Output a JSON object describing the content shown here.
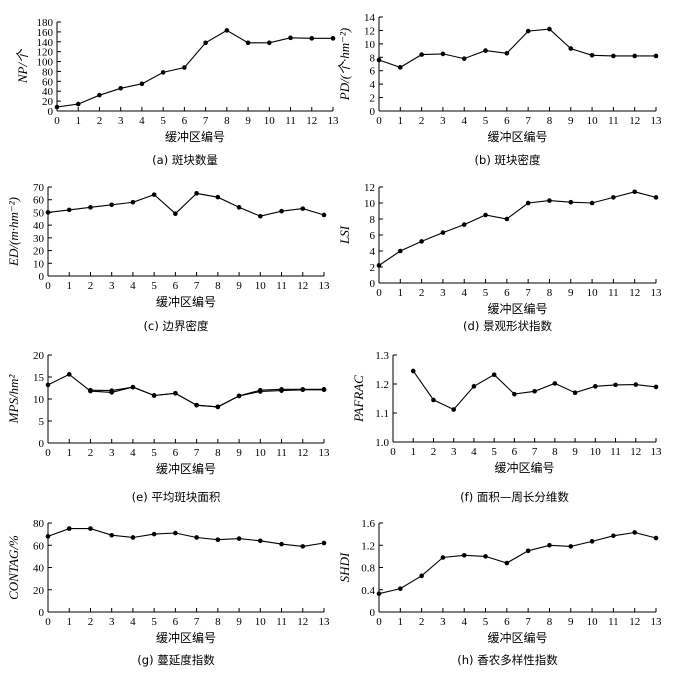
{
  "chart_data": [
    {
      "type": "line",
      "caption": "(a) 斑块数量",
      "ylabel": "NP/个",
      "xlabel": "缓冲区编号",
      "ylim": [
        0,
        180
      ],
      "yticks": [
        "0",
        "20",
        "40",
        "60",
        "80",
        "100",
        "120",
        "140",
        "160",
        "180"
      ],
      "xticks": [
        "0",
        "1",
        "2",
        "3",
        "4",
        "5",
        "6",
        "7",
        "8",
        "9",
        "10",
        "11",
        "12",
        "13"
      ],
      "series": [
        {
          "x": [
            0,
            1,
            2,
            3,
            4,
            5,
            6,
            7,
            8,
            9,
            10,
            11,
            12,
            13
          ],
          "values": [
            8,
            14,
            32,
            46,
            55,
            78,
            88,
            138,
            163,
            138,
            138,
            148,
            147,
            147
          ]
        }
      ]
    },
    {
      "type": "line",
      "caption": "(b) 斑块密度",
      "ylabel": "PD/(个·hm⁻²)",
      "xlabel": "缓冲区编号",
      "ylim": [
        0,
        14
      ],
      "yticks": [
        "0",
        "2",
        "4",
        "6",
        "8",
        "10",
        "12",
        "14"
      ],
      "xticks": [
        "0",
        "1",
        "2",
        "3",
        "4",
        "5",
        "6",
        "7",
        "8",
        "9",
        "10",
        "11",
        "12",
        "13"
      ],
      "series": [
        {
          "x": [
            0,
            1,
            2,
            3,
            4,
            5,
            6,
            7,
            8,
            9,
            10,
            11,
            12,
            13
          ],
          "values": [
            7.6,
            6.5,
            8.4,
            8.5,
            7.8,
            9.0,
            8.6,
            11.9,
            12.2,
            9.3,
            8.3,
            8.2,
            8.2,
            8.2
          ]
        }
      ]
    },
    {
      "type": "line",
      "caption": "(c) 边界密度",
      "ylabel": "ED/(m·hm⁻²)",
      "xlabel": "缓冲区编号",
      "ylim": [
        0,
        70
      ],
      "yticks": [
        "0",
        "10",
        "20",
        "30",
        "40",
        "50",
        "60",
        "70"
      ],
      "xticks": [
        "0",
        "1",
        "2",
        "3",
        "4",
        "5",
        "6",
        "7",
        "8",
        "9",
        "10",
        "11",
        "12",
        "13"
      ],
      "series": [
        {
          "x": [
            0,
            1,
            2,
            3,
            4,
            5,
            6,
            7,
            8,
            9,
            10,
            11,
            12,
            13
          ],
          "values": [
            50,
            52,
            54,
            56,
            58,
            64,
            49,
            65,
            62,
            54,
            47,
            51,
            53,
            48
          ]
        }
      ]
    },
    {
      "type": "line",
      "caption": "(d) 景观形状指数",
      "ylabel": "LSI",
      "xlabel": "缓冲区编号",
      "ylim": [
        0,
        12
      ],
      "yticks": [
        "0",
        "2",
        "4",
        "6",
        "8",
        "10",
        "12"
      ],
      "xticks": [
        "0",
        "1",
        "2",
        "3",
        "4",
        "5",
        "6",
        "7",
        "8",
        "9",
        "10",
        "11",
        "12",
        "13"
      ],
      "series": [
        {
          "x": [
            0,
            1,
            2,
            3,
            4,
            5,
            6,
            7,
            8,
            9,
            10,
            11,
            12,
            13
          ],
          "values": [
            2.2,
            4.0,
            5.2,
            6.3,
            7.3,
            8.5,
            8.0,
            10.0,
            10.3,
            10.1,
            10.0,
            10.7,
            11.4,
            10.7
          ]
        }
      ]
    },
    {
      "type": "line",
      "caption": "(e) 平均斑块面积",
      "ylabel": "MPS/hm²",
      "xlabel": "缓冲区编号",
      "ylim": [
        0,
        20
      ],
      "yticks": [
        "0",
        "5",
        "10",
        "15",
        "20"
      ],
      "xticks": [
        "0",
        "1",
        "2",
        "3",
        "4",
        "5",
        "6",
        "7",
        "8",
        "9",
        "10",
        "11",
        "12",
        "13"
      ],
      "series": [
        {
          "x": [
            0,
            1,
            2,
            3,
            4,
            5,
            6,
            7,
            8,
            9,
            10,
            11,
            12,
            13
          ],
          "values": [
            13.2,
            15.6,
            11.8,
            11.5,
            12.7,
            10.8,
            11.3,
            8.6,
            8.2,
            10.7,
            11.7,
            11.9,
            12.1,
            12.1
          ]
        },
        {
          "x": [
            2,
            3,
            4,
            5,
            6,
            7,
            8,
            9,
            10,
            11,
            12,
            13
          ],
          "values": [
            12.0,
            11.9,
            12.7,
            10.8,
            11.3,
            8.6,
            8.2,
            10.7,
            12.0,
            12.2,
            12.2,
            12.2
          ]
        }
      ]
    },
    {
      "type": "line",
      "caption": "(f) 面积—周长分维数",
      "ylabel": "PAFRAC",
      "xlabel": "缓冲区编号",
      "ylim": [
        1.0,
        1.3
      ],
      "yticks": [
        "1.0",
        "1.1",
        "1.2",
        "1.3"
      ],
      "xticks": [
        "0",
        "1",
        "2",
        "3",
        "4",
        "5",
        "6",
        "7",
        "8",
        "9",
        "10",
        "11",
        "12",
        "13"
      ],
      "series": [
        {
          "x": [
            1,
            2,
            3,
            4,
            5,
            6,
            7,
            8,
            9,
            10,
            11,
            12,
            13
          ],
          "values": [
            1.245,
            1.145,
            1.112,
            1.192,
            1.232,
            1.165,
            1.175,
            1.202,
            1.17,
            1.192,
            1.197,
            1.198,
            1.19
          ]
        }
      ]
    },
    {
      "type": "line",
      "caption": "(g) 蔓延度指数",
      "ylabel": "CONTAG/%",
      "xlabel": "缓冲区编号",
      "ylim": [
        0,
        80
      ],
      "yticks": [
        "0",
        "20",
        "40",
        "60",
        "80"
      ],
      "xticks": [
        "0",
        "1",
        "2",
        "3",
        "4",
        "5",
        "6",
        "7",
        "8",
        "9",
        "10",
        "11",
        "12",
        "13"
      ],
      "series": [
        {
          "x": [
            0,
            1,
            2,
            3,
            4,
            5,
            6,
            7,
            8,
            9,
            10,
            11,
            12,
            13
          ],
          "values": [
            68,
            75,
            75,
            69,
            67,
            70,
            71,
            67,
            65,
            66,
            64,
            61,
            59,
            62
          ]
        }
      ]
    },
    {
      "type": "line",
      "caption": "(h) 香农多样性指数",
      "ylabel": "SHDI",
      "xlabel": "缓冲区编号",
      "ylim": [
        0,
        1.6
      ],
      "yticks": [
        "0",
        "0.4",
        "0.8",
        "1.2",
        "1.6"
      ],
      "xticks": [
        "0",
        "1",
        "2",
        "3",
        "4",
        "5",
        "6",
        "7",
        "8",
        "9",
        "10",
        "11",
        "12",
        "13"
      ],
      "series": [
        {
          "x": [
            0,
            1,
            2,
            3,
            4,
            5,
            6,
            7,
            8,
            9,
            10,
            11,
            12,
            13
          ],
          "values": [
            0.33,
            0.42,
            0.65,
            0.98,
            1.02,
            1.0,
            0.88,
            1.1,
            1.2,
            1.18,
            1.27,
            1.37,
            1.43,
            1.33
          ]
        }
      ]
    }
  ]
}
